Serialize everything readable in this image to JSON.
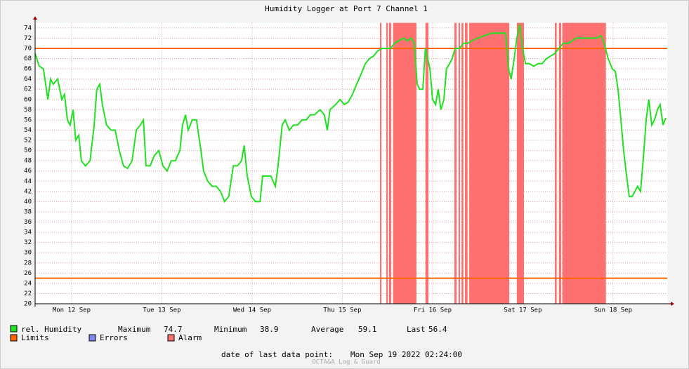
{
  "chart_data": {
    "type": "line",
    "title": "Humidity Logger at Port 7 Channel 1",
    "xlim": [
      2.3,
      170.4
    ],
    "ylim": [
      20,
      75
    ],
    "xticks": [
      {
        "value": 12,
        "label": "Mon 12 Sep"
      },
      {
        "value": 36,
        "label": "Tue 13 Sep"
      },
      {
        "value": 60,
        "label": "Wed 14 Sep"
      },
      {
        "value": 84,
        "label": "Thu 15 Sep"
      },
      {
        "value": 108,
        "label": "Fri 16 Sep"
      },
      {
        "value": 132,
        "label": "Sat 17 Sep"
      },
      {
        "value": 156,
        "label": "Sun 18 Sep"
      }
    ],
    "yticks": [
      20,
      22,
      24,
      26,
      28,
      30,
      32,
      34,
      36,
      38,
      40,
      42,
      44,
      46,
      48,
      50,
      52,
      54,
      56,
      58,
      60,
      62,
      64,
      66,
      68,
      70,
      72,
      74
    ],
    "grid": true,
    "x": [
      2.3,
      3.4,
      4.5,
      5.7,
      6.4,
      7.1,
      8.3,
      9.4,
      10.1,
      10.9,
      11.6,
      12.4,
      13.1,
      13.9,
      14.6,
      15.7,
      16.9,
      18.0,
      18.7,
      19.5,
      20.2,
      21.3,
      22.5,
      23.6,
      24.7,
      25.8,
      26.9,
      28.1,
      29.2,
      30.3,
      31.1,
      31.8,
      32.9,
      34.0,
      35.2,
      36.3,
      37.4,
      38.5,
      39.6,
      40.8,
      41.5,
      42.3,
      43.0,
      44.1,
      45.2,
      46.4,
      47.1,
      48.2,
      49.4,
      50.5,
      51.6,
      52.7,
      53.8,
      55.0,
      56.1,
      57.2,
      57.9,
      58.7,
      59.8,
      60.9,
      62.1,
      62.8,
      63.9,
      65.0,
      66.2,
      66.9,
      68.0,
      68.8,
      69.9,
      71.0,
      72.1,
      73.3,
      74.4,
      75.5,
      76.6,
      78.1,
      79.2,
      80.0,
      80.7,
      82.2,
      83.4,
      84.5,
      85.6,
      86.7,
      87.8,
      89.0,
      90.1,
      91.2,
      92.3,
      93.4,
      94.6,
      95.7,
      96.8,
      97.9,
      99.0,
      100.2,
      101.3,
      102.4,
      103.1,
      103.9,
      104.6,
      105.4,
      106.1,
      107.3,
      108.0,
      108.8,
      109.5,
      110.2,
      111.0,
      111.7,
      112.5,
      113.2,
      114.0,
      115.1,
      116.2,
      117.3,
      118.5,
      120.0,
      121.8,
      123.7,
      125.6,
      127.4,
      128.2,
      128.9,
      129.7,
      130.4,
      131.2,
      131.9,
      132.7,
      133.8,
      134.9,
      136.0,
      137.1,
      138.3,
      139.4,
      140.5,
      141.6,
      142.7,
      144.2,
      146.1,
      148.0,
      149.8,
      151.7,
      152.8,
      153.6,
      154.7,
      155.8,
      156.6,
      157.3,
      158.1,
      158.8,
      159.6,
      160.3,
      161.1,
      161.8,
      162.5,
      163.3,
      164.0,
      164.8,
      165.5,
      166.3,
      167.0,
      167.8,
      168.5,
      169.3,
      170.0
    ],
    "series": [
      {
        "name": "rel. Humidity",
        "color": "#22e022",
        "values": [
          69,
          66.5,
          66,
          60,
          64,
          63,
          64,
          60,
          61,
          56,
          55,
          58,
          52,
          53,
          48,
          47,
          48,
          55,
          62,
          63,
          59,
          55,
          54,
          54,
          50,
          47,
          46.5,
          48,
          54,
          55,
          56,
          47,
          47,
          49,
          50,
          47,
          46,
          48,
          48,
          50,
          55,
          57,
          54,
          56,
          56,
          50,
          46,
          44,
          43,
          43,
          42,
          40,
          41,
          47,
          47,
          48,
          51,
          45,
          41,
          40,
          40,
          45,
          45,
          45,
          43,
          47,
          55,
          56,
          54,
          55,
          55,
          56,
          56,
          57,
          57,
          58,
          57,
          54,
          58,
          59,
          60,
          59,
          59.5,
          61,
          63,
          65,
          67,
          68,
          68.5,
          69.5,
          70,
          70,
          70,
          71,
          71.5,
          72,
          71.5,
          72,
          71,
          63,
          62,
          62,
          70,
          66,
          60,
          59,
          62,
          58,
          60,
          66,
          67,
          68,
          70,
          70,
          71,
          71,
          71.5,
          72,
          72.5,
          73,
          73,
          73,
          66,
          64,
          68,
          72,
          74.7,
          70,
          67,
          67,
          66.5,
          67,
          67,
          68,
          68.5,
          69,
          70,
          71,
          71,
          72,
          72,
          72,
          72,
          72.5,
          71,
          68,
          66,
          65.5,
          62,
          56,
          50,
          45,
          41,
          41,
          42,
          43,
          42,
          48,
          56,
          60,
          55,
          56,
          58,
          59,
          55,
          56.4
        ]
      }
    ],
    "limits": {
      "name": "Limits",
      "color": "#ff6600",
      "values": [
        70,
        25
      ]
    },
    "errors": {
      "name": "Errors",
      "color": "#7b86f0"
    },
    "alarm": {
      "name": "Alarm",
      "color": "#ff7070",
      "spans": [
        [
          94.0,
          94.4
        ],
        [
          95.7,
          96.1
        ],
        [
          96.4,
          97.0
        ],
        [
          97.5,
          103.7
        ],
        [
          106.1,
          106.9
        ],
        [
          113.8,
          114.4
        ],
        [
          114.9,
          115.3
        ],
        [
          115.7,
          116.2
        ],
        [
          116.6,
          117.3
        ],
        [
          117.7,
          128.4
        ],
        [
          130.4,
          132.3
        ],
        [
          140.5,
          141.0
        ],
        [
          141.6,
          142.2
        ],
        [
          142.5,
          154.1
        ]
      ]
    },
    "stats": [
      {
        "label": "Maximum",
        "value": 74.7
      },
      {
        "label": "Minimum",
        "value": 38.9
      },
      {
        "label": "Average",
        "value": 59.1
      },
      {
        "label": "Last",
        "value": 56.4
      }
    ],
    "footer": {
      "label": "date of last data point:",
      "date": "Mon Sep 19 2022 02:24:00"
    },
    "credit": "OCTA&A Log & Guard"
  }
}
